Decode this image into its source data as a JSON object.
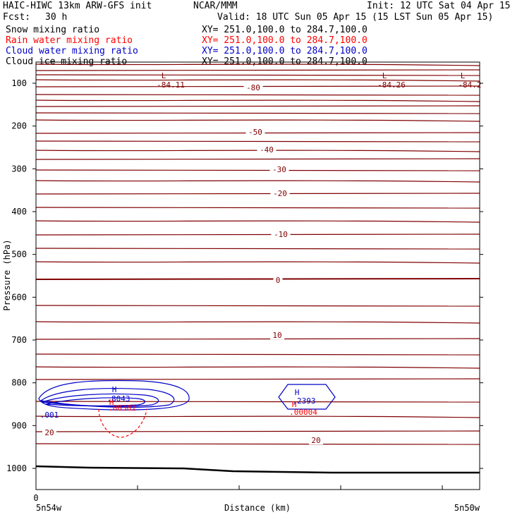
{
  "header": {
    "title_left": "HAIC-HIWC 13km ARW-GFS init",
    "org": "NCAR/MMM",
    "init": "Init: 12 UTC Sat 04 Apr 15",
    "fcst_label": "Fcst:",
    "fcst_value": "30 h",
    "valid": "Valid: 18 UTC Sun 05 Apr 15 (15 LST Sun 05 Apr 15)"
  },
  "fields": [
    {
      "name": "Snow mixing ratio",
      "xy": "XY= 251.0,100.0 to 284.7,100.0",
      "color": "#000000"
    },
    {
      "name": "Rain water mixing ratio",
      "xy": "XY= 251.0,100.0 to 284.7,100.0",
      "color": "#ff0000"
    },
    {
      "name": "Cloud water mixing ratio",
      "xy": "XY= 251.0,100.0 to 284.7,100.0",
      "color": "#0000c8"
    },
    {
      "name": "Cloud ice mixing ratio",
      "xy": "XY= 251.0,100.0 to 284.7,100.0",
      "color": "#000000"
    }
  ],
  "chart_data": {
    "type": "contour",
    "xlabel": "Distance (km)",
    "ylabel": "Pressure (hPa)",
    "x_tick_labels": [
      "0"
    ],
    "x_end_labels": [
      "5n54w",
      "5n50w"
    ],
    "yticks": [
      100,
      200,
      300,
      400,
      500,
      600,
      700,
      800,
      900,
      1000
    ],
    "ylim": [
      1050,
      50
    ],
    "temperature_isotherm_labels": [
      "-80",
      "-50",
      "-40",
      "-30",
      "-20",
      "-10",
      "0",
      "10",
      "20",
      "20"
    ],
    "low_markers": [
      {
        "symbol": "L",
        "value": "-84.11"
      },
      {
        "symbol": "L",
        "value": "-84.26"
      },
      {
        "symbol": "L",
        "value": "-84.2"
      }
    ],
    "cloud_water_maxima": [
      {
        "symbol": "H",
        "value": ".8043"
      },
      {
        "symbol": "H",
        "value": ".2393"
      }
    ],
    "rain_water_maxima": [
      {
        "symbol": "H",
        "value": ".00381"
      },
      {
        "symbol": "H",
        "value": ".00004"
      }
    ],
    "contour_labels": [
      ".001"
    ],
    "colors": {
      "isotherm": "#800000",
      "cloud_water": "#0000c8",
      "rain_water": "#ff0000",
      "terrain": "#000000"
    }
  }
}
